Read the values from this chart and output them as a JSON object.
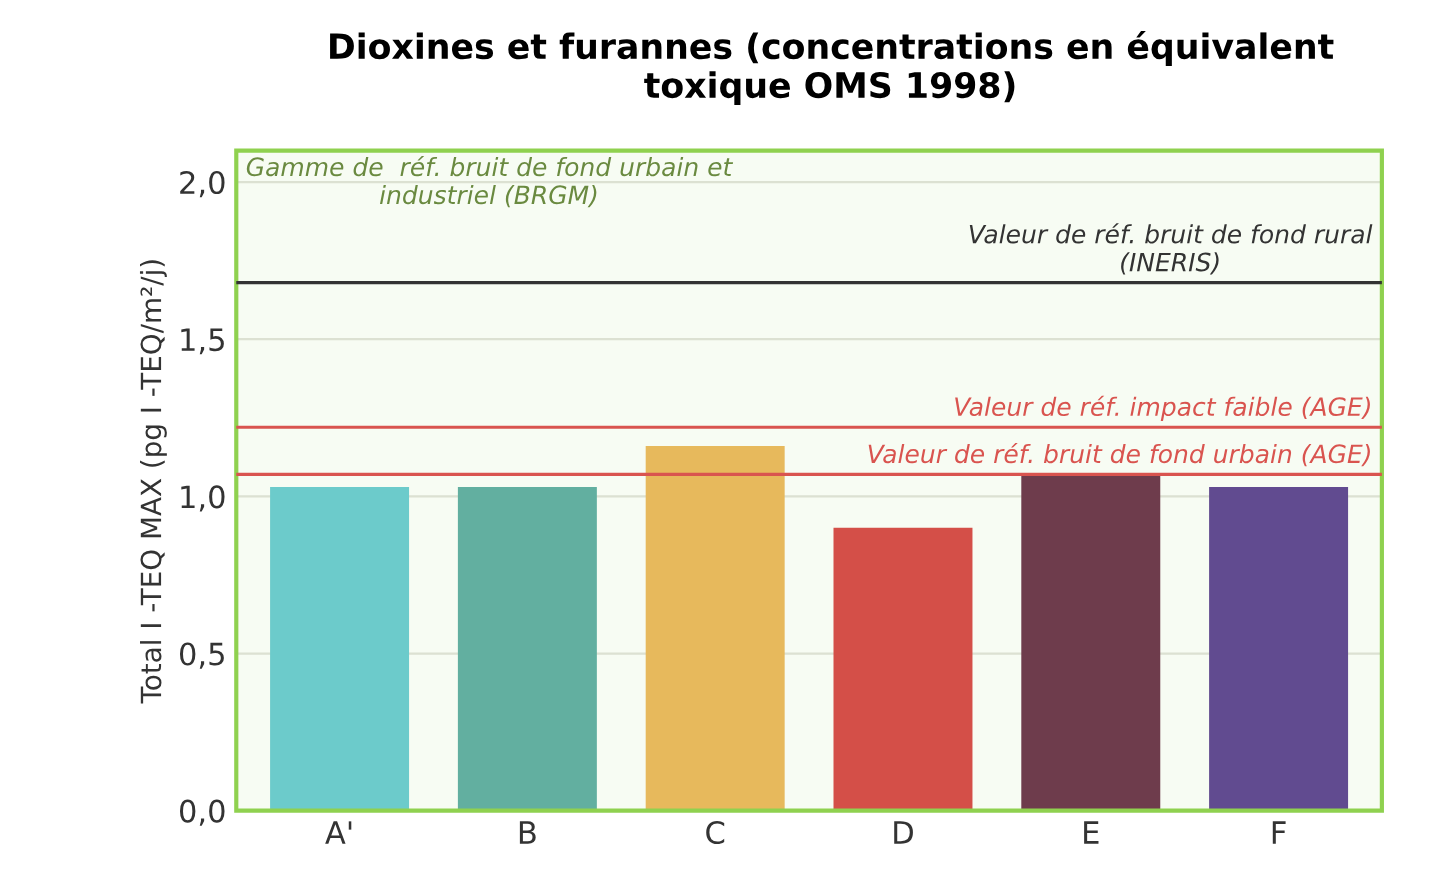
{
  "chart_data": {
    "type": "bar",
    "title": "Dioxines et furannes (concentrations en équivalent\ntoxique OMS 1998)",
    "ylabel": "Total I -TEQ MAX (pg I -TEQ/m²/j)",
    "categories": [
      "A'",
      "B",
      "C",
      "D",
      "E",
      "F"
    ],
    "values": [
      1.03,
      1.03,
      1.16,
      0.9,
      1.07,
      1.03
    ],
    "colors": [
      "#6ccbcb",
      "#62afa0",
      "#e7b95c",
      "#d44f48",
      "#6e3c4c",
      "#614b90"
    ],
    "ylim": [
      0,
      2.1
    ],
    "yticks": [
      {
        "value": 0,
        "label": "0,0"
      },
      {
        "value": 0.5,
        "label": "0,5"
      },
      {
        "value": 1,
        "label": "1,0"
      },
      {
        "value": 1.5,
        "label": "1,5"
      },
      {
        "value": 2,
        "label": "2,0"
      }
    ],
    "grid": "y",
    "ref_lines": [
      {
        "axis": "y",
        "value": 1.68,
        "label": "Valeur de réf. bruit de fond rural\n(INERIS)",
        "color": "#333333"
      },
      {
        "axis": "y",
        "value": 1.22,
        "label": "Valeur de réf. impact faible (AGE)",
        "color": "#d9544f"
      },
      {
        "axis": "y",
        "value": 1.07,
        "label": "Valeur de réf. bruit de fond urbain (AGE)",
        "color": "#d9544f"
      }
    ],
    "bands": [
      {
        "axis": "y",
        "from": 0,
        "to": 2.1,
        "label": "Gamme de  réf. bruit de fond urbain et\nindustriel (BRGM)",
        "color": "#8fd14f"
      }
    ]
  }
}
